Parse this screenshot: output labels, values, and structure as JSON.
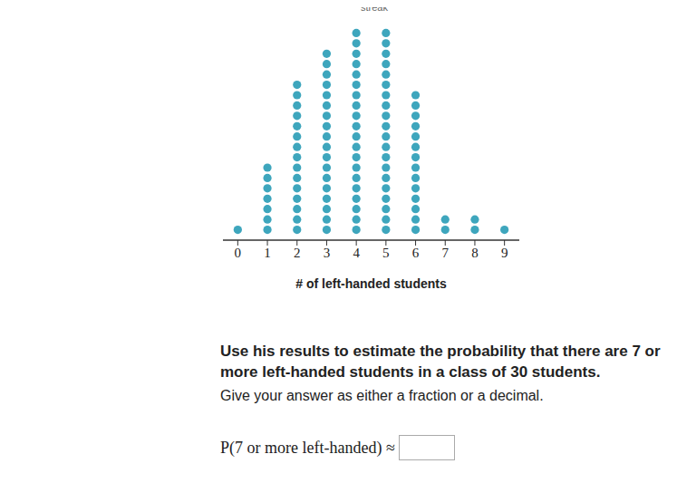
{
  "chart_data": {
    "type": "dot",
    "x_label": "# of left-handed students",
    "x": [
      0,
      1,
      2,
      3,
      4,
      5,
      6,
      7,
      8,
      9
    ],
    "values": [
      1,
      7,
      15,
      18,
      20,
      20,
      14,
      2,
      2,
      1
    ],
    "color": "#3ea6bd",
    "marker": "circle",
    "xlim": [
      -0.5,
      9.5
    ],
    "xticks": [
      0,
      1,
      2,
      3,
      4,
      5,
      6,
      7,
      8,
      9
    ],
    "ylim": [
      0,
      21
    ],
    "tick_labels": "x",
    "annotations": [
      "streak",
      "Use his results to estimate the probability that there are 7 or more left-handed students in a class of 30 students.",
      "Give your answer as either a fraction or a decimal.",
      "P(7 or more left-handed) ≈"
    ]
  }
}
